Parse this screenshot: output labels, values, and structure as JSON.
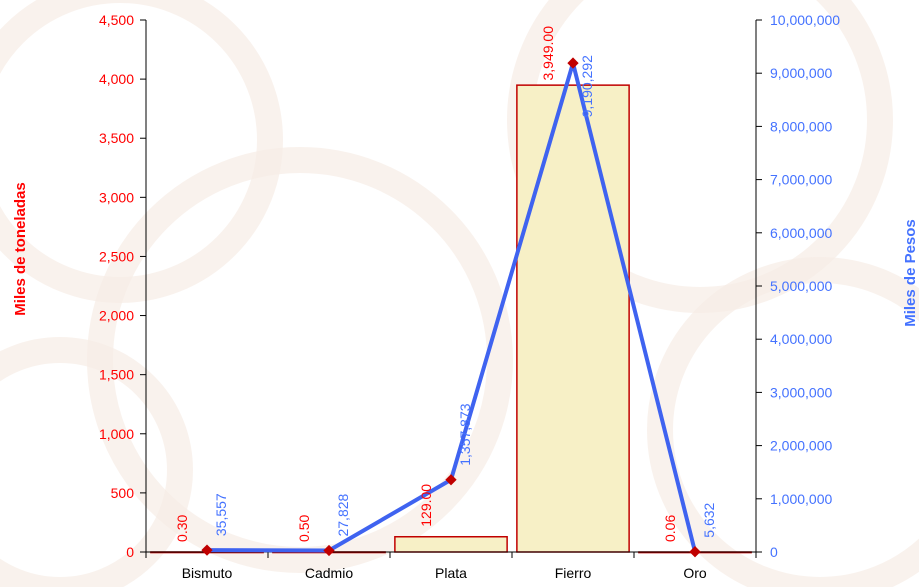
{
  "chart_data": {
    "type": "bar",
    "categories": [
      "Bismuto",
      "Cadmio",
      "Plata",
      "Fierro",
      "Oro"
    ],
    "series": [
      {
        "type": "bar",
        "axis": "left",
        "values": [
          0.3,
          0.5,
          129.0,
          3949.0,
          0.06
        ],
        "labels": [
          "0.30",
          "0.50",
          "129.00",
          "3,949.00",
          "0.06"
        ],
        "color": "#f7f0c6",
        "border": "#c00000"
      },
      {
        "type": "line",
        "axis": "right",
        "values": [
          35557,
          27828,
          1357873,
          9190292,
          5632
        ],
        "labels": [
          "35,557",
          "27,828",
          "1,357,873",
          "9,190,292",
          "5,632"
        ],
        "color": "#3f63f0",
        "marker": "#c00000"
      }
    ],
    "ylabel": "Miles de toneladas",
    "y2label": "Miles de Pesos",
    "ylim": [
      0,
      4500
    ],
    "y2lim": [
      0,
      10000000
    ],
    "yticks": [
      "0",
      "500",
      "1,000",
      "1,500",
      "2,000",
      "2,500",
      "3,000",
      "3,500",
      "4,000",
      "4,500"
    ],
    "y2ticks": [
      "0",
      "1,000,000",
      "2,000,000",
      "3,000,000",
      "4,000,000",
      "5,000,000",
      "6,000,000",
      "7,000,000",
      "8,000,000",
      "9,000,000",
      "10,000,000"
    ],
    "grid": false,
    "legend": "none"
  }
}
